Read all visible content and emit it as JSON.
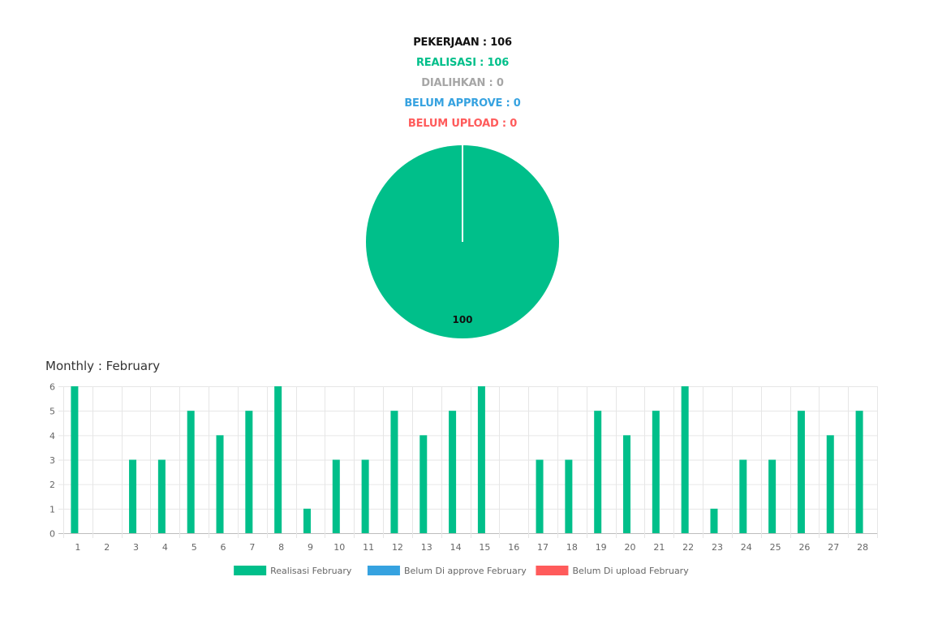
{
  "summary": {
    "pekerjaan": "PEKERJAAN : 106",
    "realisasi": "REALISASI : 106",
    "dialihkan": "DIALIHKAN : 0",
    "belum_approve": "BELUM APPROVE : 0",
    "belum_upload": "BELUM UPLOAD : 0"
  },
  "colors": {
    "realisasi": "#00bf8a",
    "approve": "#36a2e0",
    "upload": "#ff5b5b",
    "dialihkan": "#a6a6a6",
    "text_dark": "#111111",
    "grid": "#e6e6e6"
  },
  "monthly_title": "Monthly : February",
  "chart_data": [
    {
      "type": "pie",
      "labels": [
        "Realisasi",
        "Dialihkan",
        "Belum Approve",
        "Belum Upload"
      ],
      "values": [
        100,
        0,
        0,
        0
      ],
      "data_labels": [
        "100"
      ]
    },
    {
      "type": "bar",
      "categories": [
        "1",
        "2",
        "3",
        "4",
        "5",
        "6",
        "7",
        "8",
        "9",
        "10",
        "11",
        "12",
        "13",
        "14",
        "15",
        "16",
        "17",
        "18",
        "19",
        "20",
        "21",
        "22",
        "23",
        "24",
        "25",
        "26",
        "27",
        "28"
      ],
      "series": [
        {
          "name": "Realisasi February",
          "values": [
            6,
            0,
            3,
            3,
            5,
            4,
            5,
            6,
            1,
            3,
            3,
            5,
            4,
            5,
            6,
            0,
            3,
            3,
            5,
            4,
            5,
            6,
            1,
            3,
            3,
            5,
            4,
            5
          ]
        },
        {
          "name": "Belum Di approve February",
          "values": [
            0,
            0,
            0,
            0,
            0,
            0,
            0,
            0,
            0,
            0,
            0,
            0,
            0,
            0,
            0,
            0,
            0,
            0,
            0,
            0,
            0,
            0,
            0,
            0,
            0,
            0,
            0,
            0
          ]
        },
        {
          "name": "Belum Di upload February",
          "values": [
            0,
            0,
            0,
            0,
            0,
            0,
            0,
            0,
            0,
            0,
            0,
            0,
            0,
            0,
            0,
            0,
            0,
            0,
            0,
            0,
            0,
            0,
            0,
            0,
            0,
            0,
            0,
            0
          ]
        }
      ],
      "y_ticks": [
        "0",
        "1",
        "2",
        "3",
        "4",
        "5",
        "6"
      ],
      "ylim": [
        0,
        6
      ],
      "grid": true,
      "legend": "bottom"
    }
  ]
}
